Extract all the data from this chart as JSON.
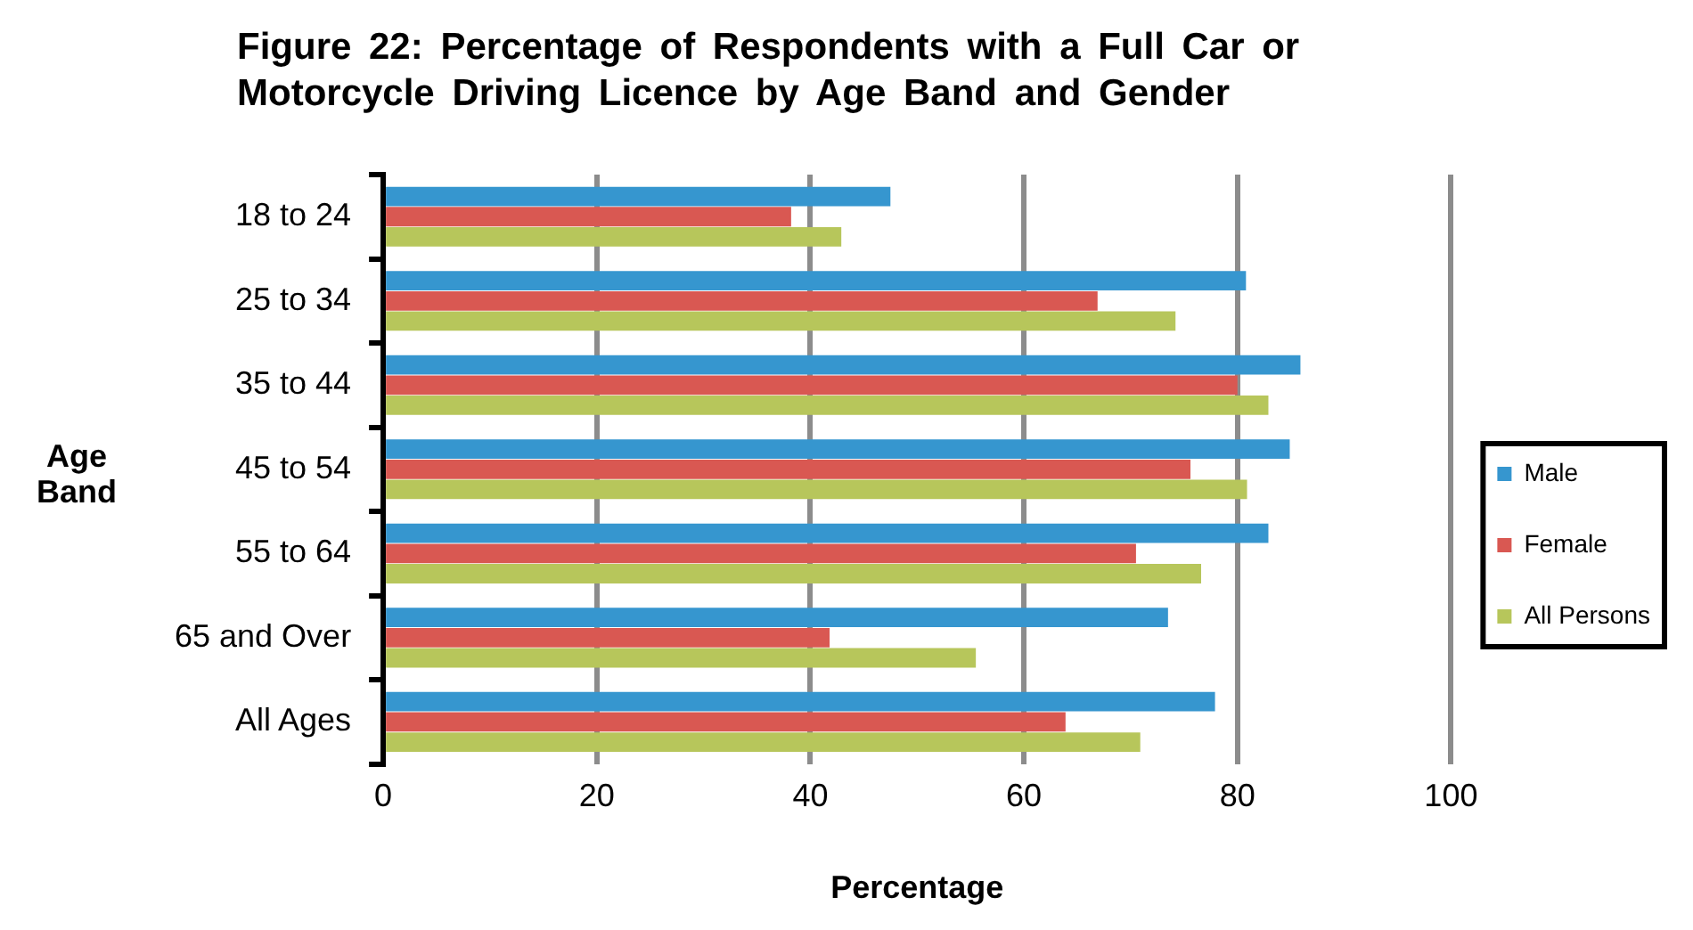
{
  "chart_data": {
    "type": "bar",
    "orientation": "horizontal",
    "title": "Figure 22: Percentage of Respondents with a Full Car or Motorcycle Driving Licence by Age Band and Gender",
    "xlabel": "Percentage",
    "ylabel": "Age Band",
    "categories": [
      "18 to 24",
      "25 to 34",
      "35 to 44",
      "45 to 54",
      "55 to 64",
      "65 and Over",
      "All Ages"
    ],
    "series": [
      {
        "name": "Male",
        "color": "#3696cf",
        "values": [
          47.5,
          80.8,
          85.9,
          84.9,
          82.9,
          73.5,
          77.9
        ]
      },
      {
        "name": "Female",
        "color": "#d95852",
        "values": [
          38.2,
          66.9,
          80.0,
          75.6,
          70.5,
          41.8,
          63.9
        ]
      },
      {
        "name": "All Persons",
        "color": "#b7c65b",
        "values": [
          42.9,
          74.2,
          82.9,
          80.9,
          76.6,
          55.5,
          70.9
        ]
      }
    ],
    "xlim": [
      0,
      100
    ],
    "xticks": [
      0,
      20,
      40,
      60,
      80,
      100
    ],
    "grid": "x",
    "legend": "right"
  }
}
